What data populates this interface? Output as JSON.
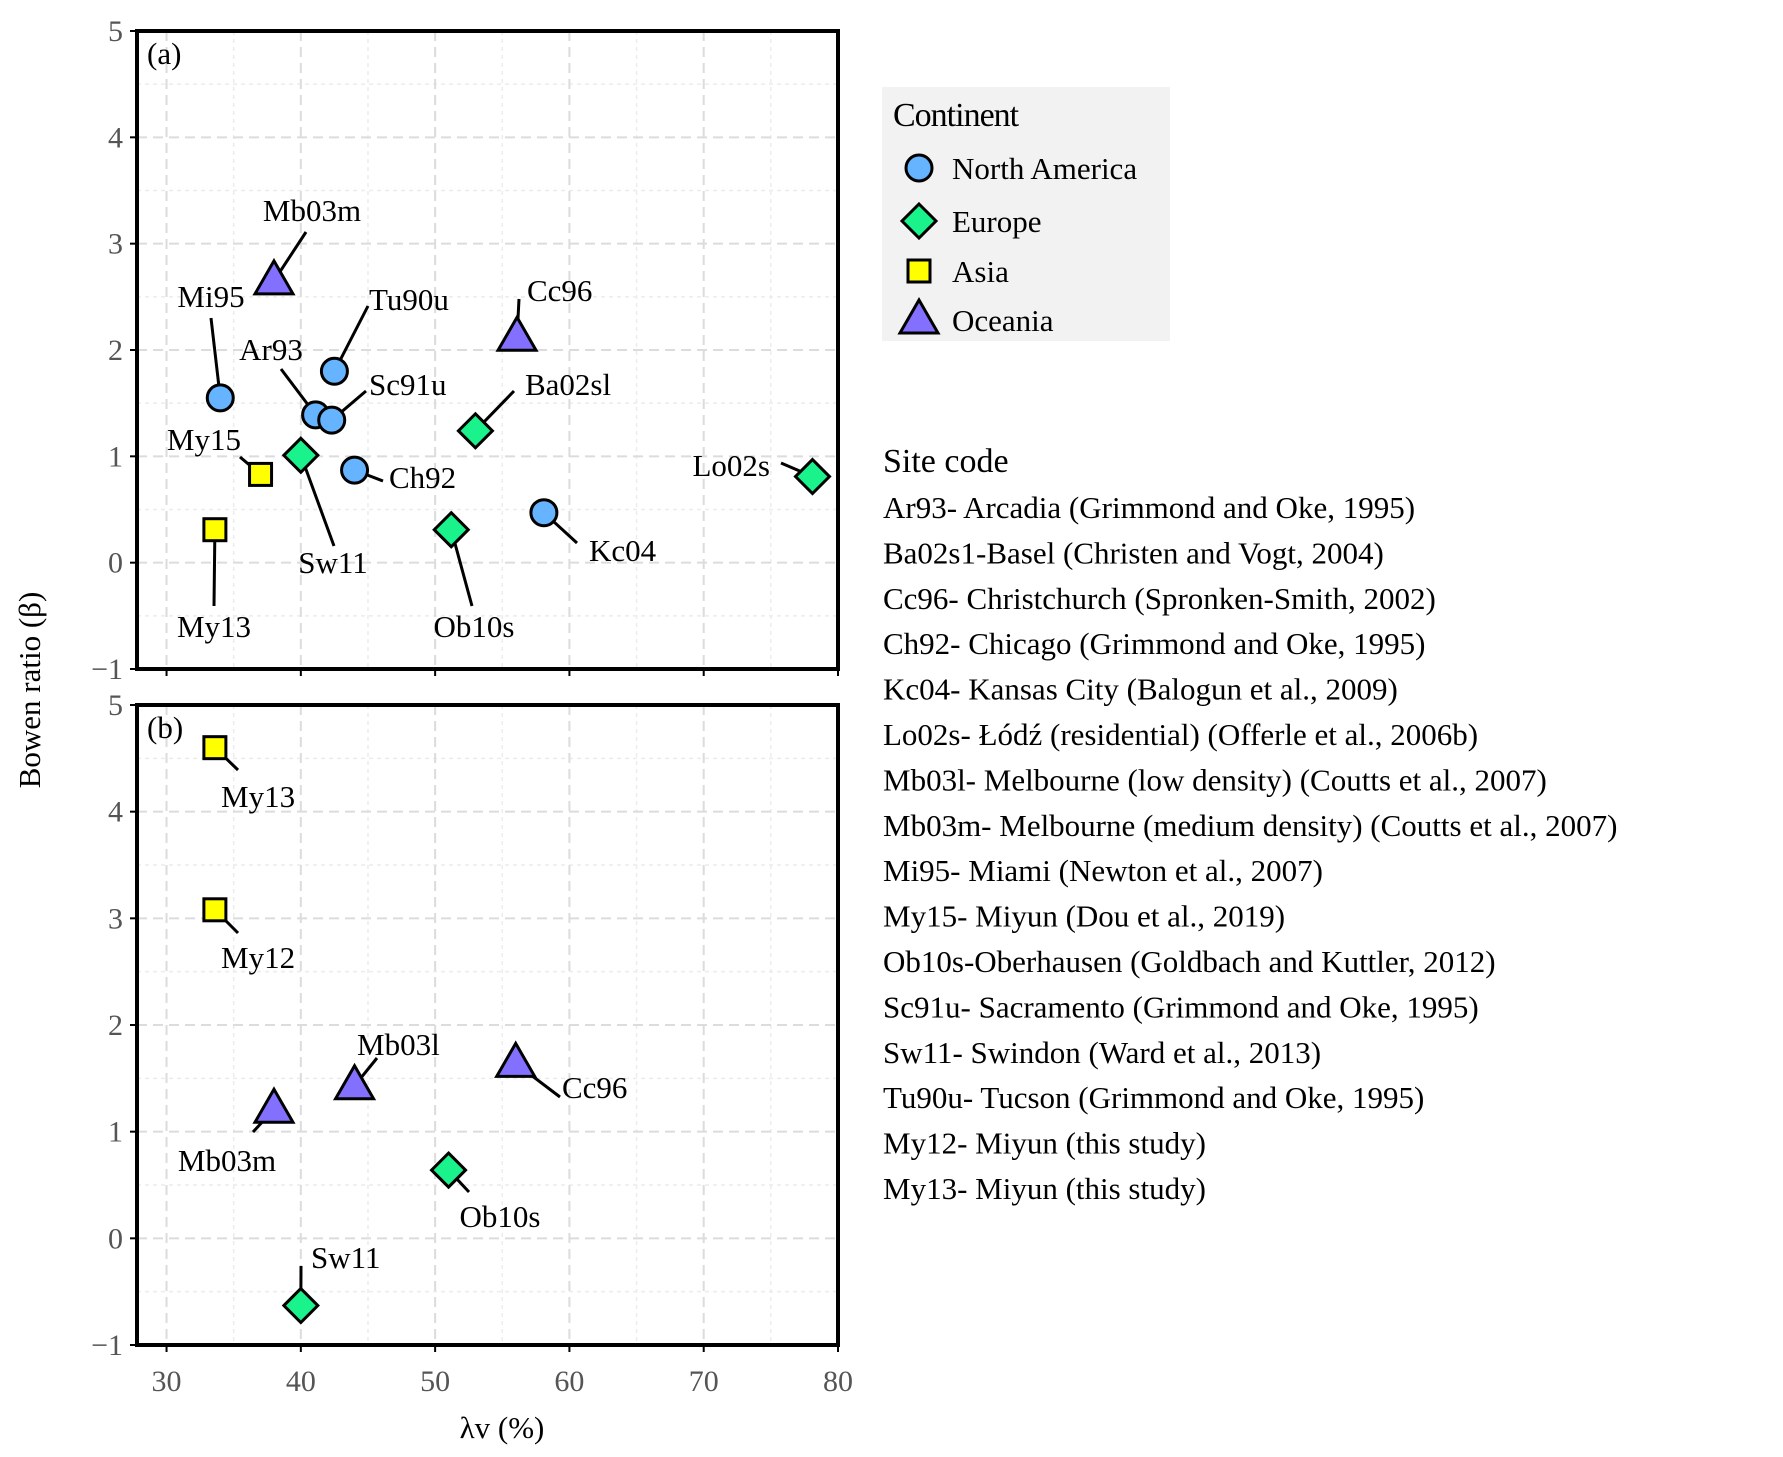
{
  "chart_data": [
    {
      "type": "scatter",
      "panel_label": "(a)",
      "xlabel": "λv (%)",
      "ylabel": "Bowen ratio (β)",
      "xlim": [
        27.8,
        80
      ],
      "ylim": [
        -1,
        5
      ],
      "xticks": [
        30,
        40,
        50,
        60,
        70,
        80
      ],
      "yticks": [
        -1,
        0,
        1,
        2,
        3,
        4,
        5
      ],
      "ytick_labels": [
        "−1",
        "0",
        "1",
        "2",
        "3",
        "4",
        "5"
      ],
      "grid": true,
      "points": [
        {
          "label": "Mb03m",
          "x": 38.0,
          "y": 2.65,
          "continent": "Oceania"
        },
        {
          "label": "Mi95",
          "x": 34.0,
          "y": 1.55,
          "continent": "North America"
        },
        {
          "label": "Tu90u",
          "x": 42.5,
          "y": 1.8,
          "continent": "North America"
        },
        {
          "label": "Ar93",
          "x": 41.1,
          "y": 1.39,
          "continent": "North America"
        },
        {
          "label": "Sc91u",
          "x": 42.3,
          "y": 1.34,
          "continent": "North America"
        },
        {
          "label": "Cc96",
          "x": 56.1,
          "y": 2.12,
          "continent": "Oceania"
        },
        {
          "label": "Ba02sl",
          "x": 53.0,
          "y": 1.24,
          "continent": "Europe"
        },
        {
          "label": "My15",
          "x": 37.0,
          "y": 0.83,
          "continent": "Asia"
        },
        {
          "label": "Sw11",
          "x": 40.0,
          "y": 1.01,
          "continent": "Europe"
        },
        {
          "label": "Ch92",
          "x": 44.0,
          "y": 0.87,
          "continent": "North America"
        },
        {
          "label": "Lo02s",
          "x": 78.1,
          "y": 0.81,
          "continent": "Europe"
        },
        {
          "label": "Kc04",
          "x": 58.1,
          "y": 0.47,
          "continent": "North America"
        },
        {
          "label": "Ob10s",
          "x": 51.2,
          "y": 0.31,
          "continent": "Europe"
        },
        {
          "label": "My13",
          "x": 33.6,
          "y": 0.31,
          "continent": "Asia"
        }
      ]
    },
    {
      "type": "scatter",
      "panel_label": "(b)",
      "xlabel": "λv (%)",
      "ylabel": "Bowen ratio (β)",
      "xlim": [
        27.8,
        80
      ],
      "ylim": [
        -1,
        5
      ],
      "xticks": [
        30,
        40,
        50,
        60,
        70,
        80
      ],
      "yticks": [
        -1,
        0,
        1,
        2,
        3,
        4,
        5
      ],
      "ytick_labels": [
        "−1",
        "0",
        "1",
        "2",
        "3",
        "4",
        "5"
      ],
      "grid": true,
      "points": [
        {
          "label": "My13",
          "x": 33.6,
          "y": 4.6,
          "continent": "Asia"
        },
        {
          "label": "My12",
          "x": 33.6,
          "y": 3.08,
          "continent": "Asia"
        },
        {
          "label": "Mb03l",
          "x": 44.0,
          "y": 1.43,
          "continent": "Oceania"
        },
        {
          "label": "Cc96",
          "x": 56.0,
          "y": 1.64,
          "continent": "Oceania"
        },
        {
          "label": "Mb03m",
          "x": 38.0,
          "y": 1.21,
          "continent": "Oceania"
        },
        {
          "label": "Ob10s",
          "x": 51.0,
          "y": 0.64,
          "continent": "Europe"
        },
        {
          "label": "Sw11",
          "x": 40.0,
          "y": -0.63,
          "continent": "Europe"
        }
      ]
    }
  ],
  "legend": {
    "title": "Continent",
    "placement": "right",
    "items": [
      {
        "label": "North America",
        "marker": "circle",
        "color": "#66b3ff"
      },
      {
        "label": "Europe",
        "marker": "diamond",
        "color": "#1af28c"
      },
      {
        "label": "Asia",
        "marker": "square",
        "color": "#ffff00"
      },
      {
        "label": "Oceania",
        "marker": "triangle",
        "color": "#8370ff"
      }
    ]
  },
  "site_code": {
    "title": "Site code",
    "lines": [
      "Ar93- Arcadia (Grimmond and Oke, 1995)",
      "Ba02s1-Basel (Christen and Vogt, 2004)",
      "Cc96- Christchurch (Spronken-Smith, 2002)",
      "Ch92- Chicago (Grimmond and Oke, 1995)",
      "Kc04- Kansas City (Balogun et al., 2009)",
      "Lo02s- Łódź (residential) (Offerle et al., 2006b)",
      "Mb03l- Melbourne (low density) (Coutts et al., 2007)",
      "Mb03m- Melbourne (medium density) (Coutts et al., 2007)",
      "Mi95- Miami (Newton et al., 2007)",
      "My15- Miyun (Dou et al., 2019)",
      "Ob10s-Oberhausen (Goldbach and Kuttler, 2012)",
      "Sc91u- Sacramento (Grimmond and Oke, 1995)",
      "Sw11- Swindon (Ward et al., 2013)",
      "Tu90u- Tucson (Grimmond and Oke, 1995)",
      "My12- Miyun (this study)",
      "My13- Miyun (this study)"
    ]
  }
}
